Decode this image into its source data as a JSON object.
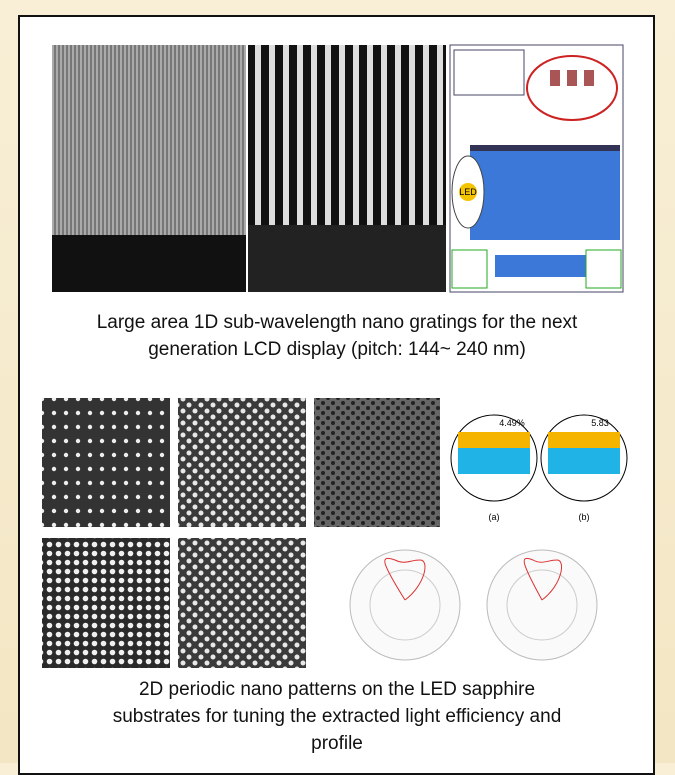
{
  "figure_1": {
    "caption_lines": [
      "Large area 1D sub-wavelength nano gratings for the next",
      "generation LCD  display  (pitch: 144~ 240 nm)"
    ],
    "diagram_labels": [
      "LED"
    ]
  },
  "figure_2": {
    "caption_lines": [
      "2D periodic nano patterns on the LED sapphire",
      "substrates for tuning the extracted light efficiency and",
      "profile"
    ],
    "efficiency_labels": [
      "4.49%",
      "5.83"
    ],
    "panel_labels": [
      "(a)",
      "(b)"
    ]
  }
}
